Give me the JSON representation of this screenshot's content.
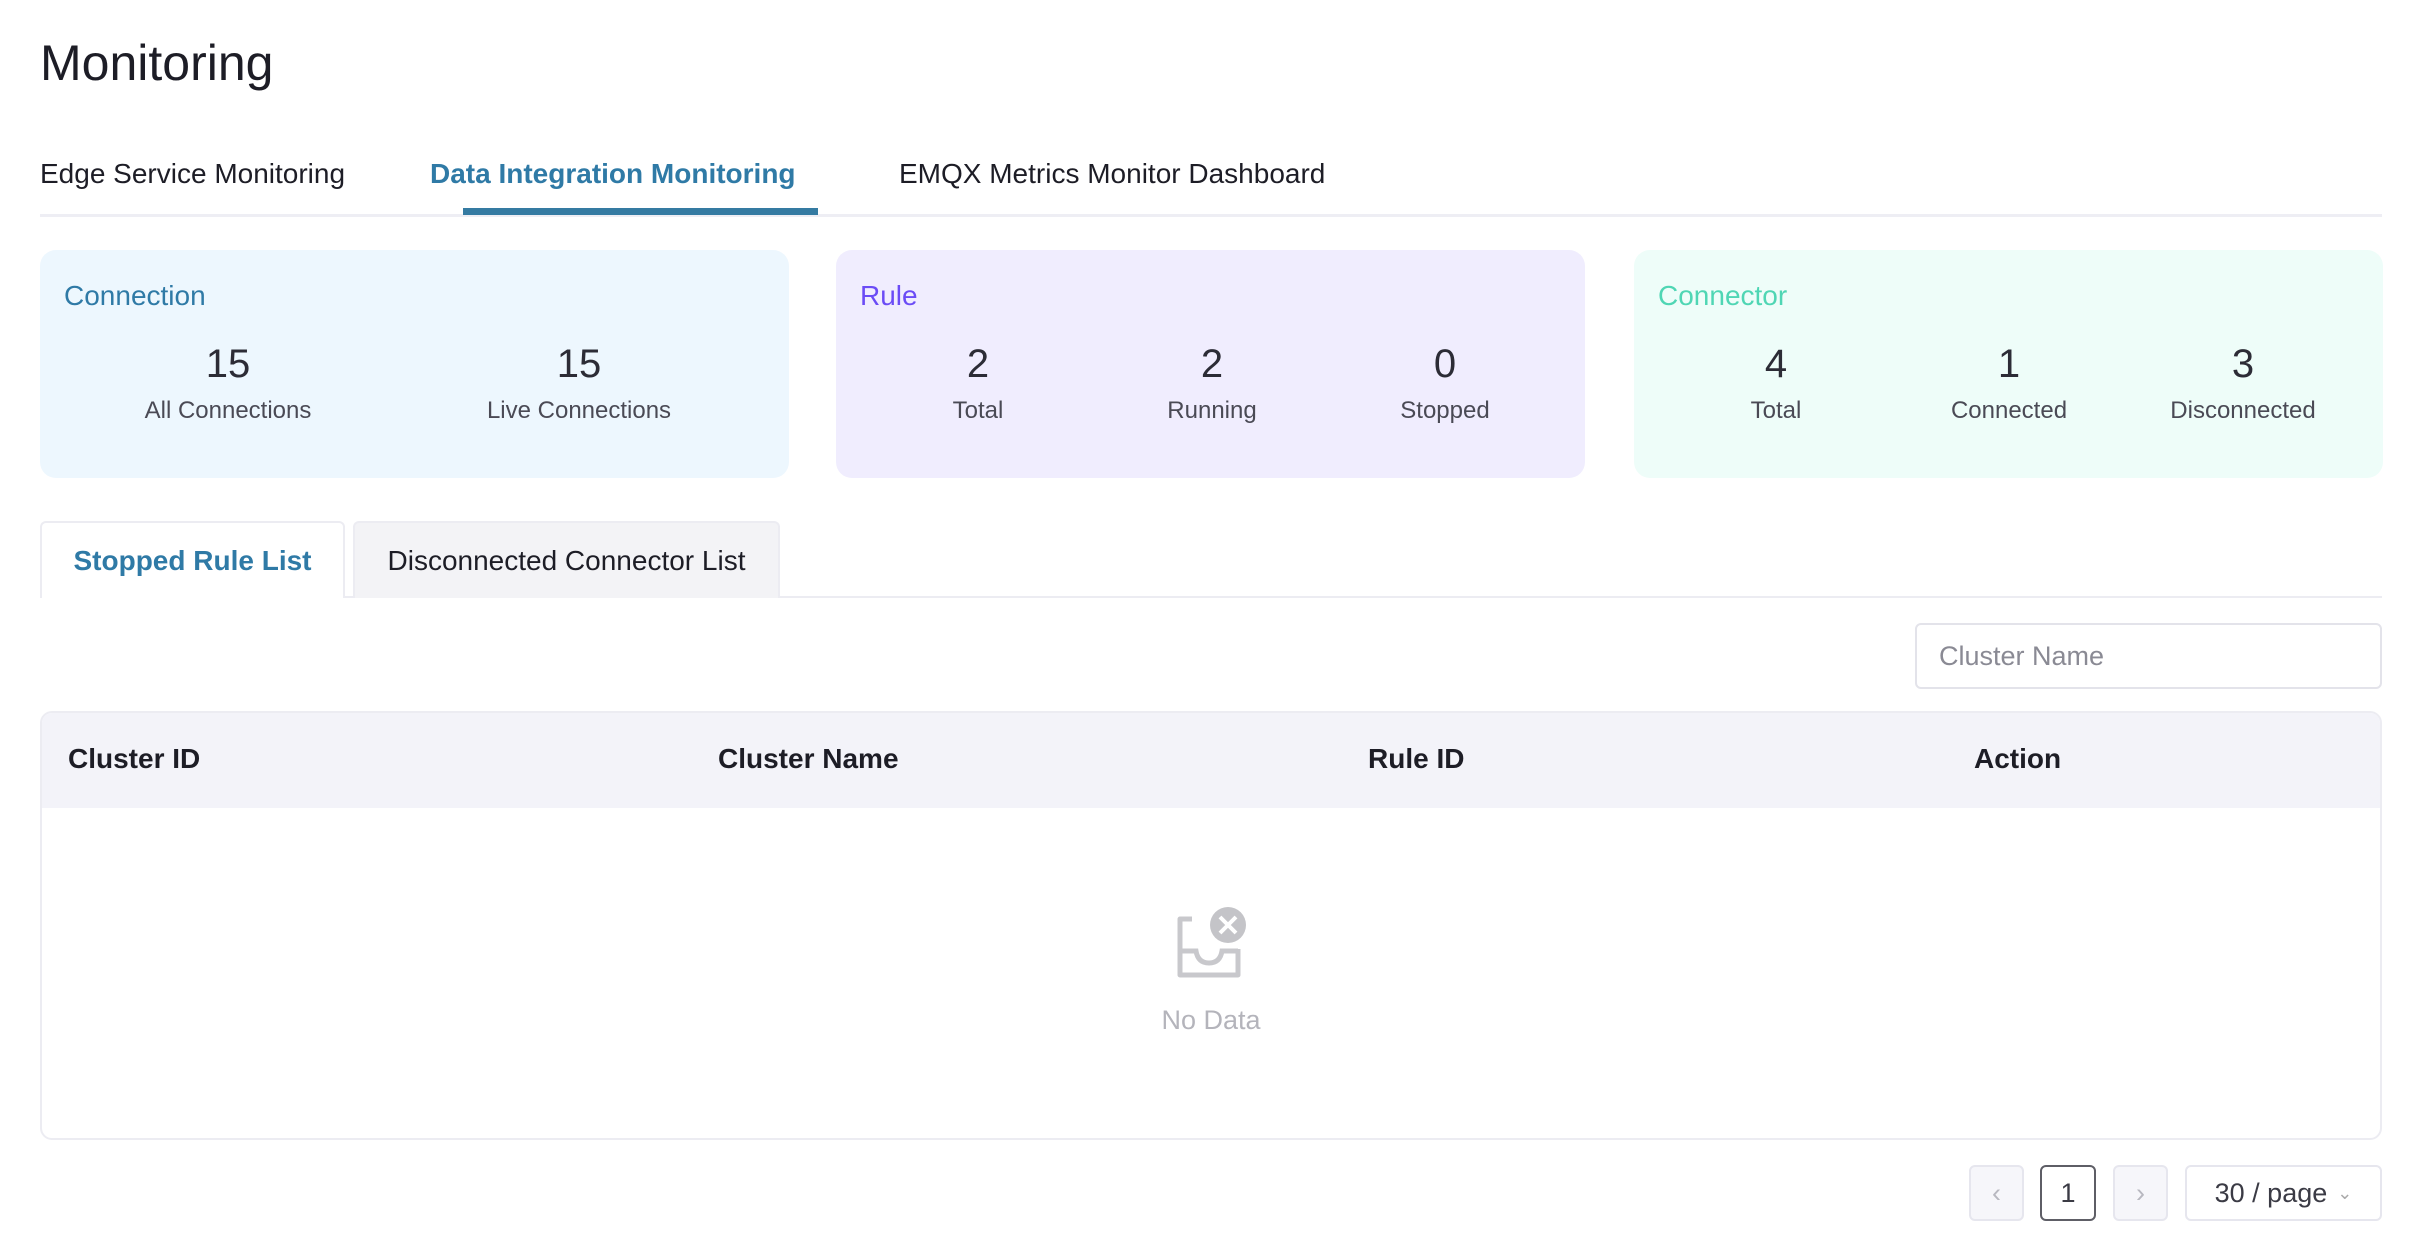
{
  "page_title": "Monitoring",
  "tabs": [
    {
      "label": "Edge Service Monitoring",
      "active": false
    },
    {
      "label": "Data Integration Monitoring",
      "active": true
    },
    {
      "label": "EMQX Metrics Monitor Dashboard",
      "active": false
    }
  ],
  "cards": {
    "connection": {
      "title": "Connection",
      "color": "#2f7aa6",
      "bg": "#edf7fe",
      "stats": [
        {
          "value": "15",
          "label": "All Connections"
        },
        {
          "value": "15",
          "label": "Live Connections"
        }
      ]
    },
    "rule": {
      "title": "Rule",
      "color": "#6b4cf6",
      "bg": "#f0edfe",
      "stats": [
        {
          "value": "2",
          "label": "Total"
        },
        {
          "value": "2",
          "label": "Running"
        },
        {
          "value": "0",
          "label": "Stopped"
        }
      ]
    },
    "connector": {
      "title": "Connector",
      "color": "#4fd6b4",
      "bg": "#eefdf9",
      "stats": [
        {
          "value": "4",
          "label": "Total"
        },
        {
          "value": "1",
          "label": "Connected"
        },
        {
          "value": "3",
          "label": "Disconnected"
        }
      ]
    }
  },
  "subtabs": [
    {
      "label": "Stopped Rule List",
      "active": true
    },
    {
      "label": "Disconnected Connector List",
      "active": false
    }
  ],
  "search": {
    "placeholder": "Cluster Name",
    "value": ""
  },
  "table": {
    "columns": [
      "Cluster ID",
      "Cluster Name",
      "Rule ID",
      "Action"
    ],
    "rows": [],
    "empty_text": "No Data"
  },
  "pagination": {
    "current_page": "1",
    "page_size": "30 / page"
  }
}
